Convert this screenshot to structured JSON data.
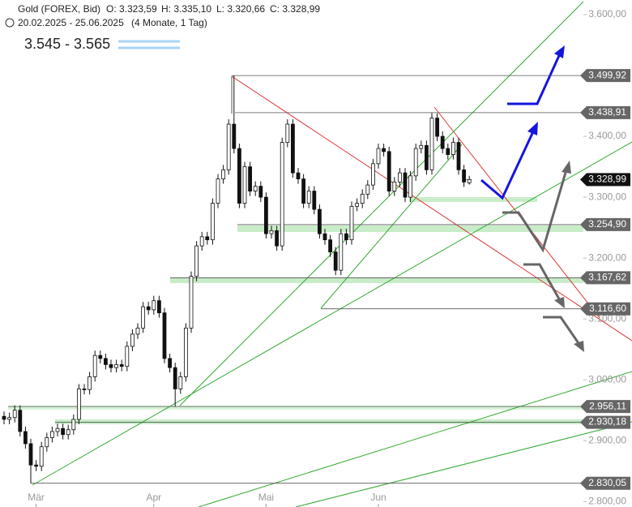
{
  "chart_data": {
    "type": "candlestick",
    "header": {
      "title": "Gold (FOREX, Bid)",
      "open": "O: 3.323,59",
      "high": "H: 3.335,10",
      "low": "L: 3.320,66",
      "close": "C: 3.328,99",
      "range": "20.02.2025 - 25.06.2025",
      "period": "(4 Monate, 1 Tag)"
    },
    "legend": {
      "label": "3.545 - 3.565",
      "color": "#a8d4f5"
    },
    "categories": [
      null,
      null,
      null,
      null,
      null,
      null,
      "Mär",
      null,
      null,
      null,
      null,
      null,
      null,
      null,
      null,
      null,
      null,
      null,
      null,
      null,
      null,
      null,
      null,
      null,
      null,
      null,
      null,
      null,
      "Apr",
      null,
      null,
      null,
      null,
      null,
      null,
      null,
      null,
      null,
      null,
      null,
      null,
      null,
      null,
      null,
      null,
      null,
      null,
      null,
      null,
      "Mai",
      null,
      null,
      null,
      null,
      null,
      null,
      null,
      null,
      null,
      null,
      null,
      null,
      null,
      null,
      null,
      null,
      null,
      null,
      null,
      null,
      "Jun",
      null,
      null,
      null,
      null,
      null,
      null,
      null,
      null,
      null,
      null,
      null,
      null,
      null,
      null,
      null,
      null,
      null
    ],
    "open": [
      2940,
      2935,
      2938,
      2950,
      2915,
      2895,
      2860,
      2858,
      2890,
      2905,
      2915,
      2920,
      2910,
      2918,
      2935,
      2985,
      2984,
      3005,
      3040,
      3035,
      3025,
      3020,
      3025,
      3022,
      3055,
      3075,
      3085,
      3120,
      3115,
      3130,
      3110,
      3035,
      3020,
      2985,
      3005,
      3085,
      3170,
      3220,
      3235,
      3230,
      3290,
      3330,
      3345,
      3420,
      3380,
      3290,
      3350,
      3310,
      3318,
      3300,
      3240,
      3245,
      3220,
      3390,
      3420,
      3340,
      3330,
      3290,
      3310,
      3280,
      3240,
      3230,
      3210,
      3180,
      3240,
      3230,
      3285,
      3290,
      3305,
      3320,
      3355,
      3380,
      3375,
      3310,
      3325,
      3340,
      3300,
      3335,
      3380,
      3385,
      3345,
      3430,
      3400,
      3380,
      3370,
      3390,
      3345,
      3323.59
    ],
    "high": [
      2948,
      2946,
      2958,
      2958,
      2923,
      2903,
      2868,
      2898,
      2913,
      2923,
      2928,
      2928,
      2926,
      2943,
      2993,
      2993,
      3013,
      3048,
      3048,
      3043,
      3033,
      3033,
      3033,
      3063,
      3083,
      3093,
      3128,
      3128,
      3138,
      3138,
      3118,
      3043,
      3028,
      3013,
      3093,
      3178,
      3228,
      3243,
      3243,
      3298,
      3338,
      3353,
      3428,
      3499.92,
      3388,
      3358,
      3358,
      3326,
      3326,
      3308,
      3253,
      3253,
      3398,
      3428,
      3428,
      3348,
      3338,
      3318,
      3318,
      3288,
      3248,
      3238,
      3218,
      3248,
      3248,
      3293,
      3298,
      3313,
      3328,
      3363,
      3388,
      3388,
      3383,
      3333,
      3348,
      3348,
      3343,
      3388,
      3393,
      3393,
      3438.91,
      3438,
      3408,
      3388,
      3398,
      3398,
      3353,
      3335.1
    ],
    "low": [
      2927,
      2927,
      2930,
      2907,
      2887,
      2830,
      2850,
      2850,
      2882,
      2897,
      2907,
      2902,
      2902,
      2910,
      2927,
      2976,
      2976,
      2997,
      3027,
      3017,
      3012,
      3012,
      3014,
      3014,
      3047,
      3067,
      3077,
      3107,
      3107,
      3102,
      3027,
      3012,
      2956,
      2977,
      2997,
      3077,
      3162,
      3212,
      3222,
      3222,
      3282,
      3322,
      3337,
      3372,
      3282,
      3282,
      3302,
      3302,
      3292,
      3232,
      3232,
      3212,
      3212,
      3382,
      3332,
      3322,
      3282,
      3282,
      3272,
      3232,
      3222,
      3202,
      3172,
      3172,
      3222,
      3222,
      3277,
      3282,
      3297,
      3312,
      3347,
      3367,
      3302,
      3302,
      3317,
      3292,
      3292,
      3327,
      3372,
      3337,
      3337,
      3392,
      3372,
      3362,
      3362,
      3337,
      3317,
      3320.66
    ],
    "close": [
      2935,
      2938,
      2950,
      2915,
      2895,
      2860,
      2858,
      2890,
      2905,
      2915,
      2920,
      2910,
      2918,
      2935,
      2985,
      2984,
      3005,
      3040,
      3035,
      3025,
      3020,
      3025,
      3022,
      3055,
      3075,
      3085,
      3120,
      3115,
      3130,
      3110,
      3035,
      3020,
      2985,
      3005,
      3085,
      3170,
      3220,
      3235,
      3230,
      3290,
      3330,
      3345,
      3420,
      3380,
      3290,
      3350,
      3310,
      3318,
      3300,
      3240,
      3245,
      3220,
      3390,
      3420,
      3340,
      3330,
      3290,
      3310,
      3280,
      3240,
      3230,
      3210,
      3180,
      3240,
      3230,
      3285,
      3290,
      3305,
      3320,
      3355,
      3380,
      3375,
      3310,
      3325,
      3340,
      3300,
      3335,
      3380,
      3385,
      3345,
      3430,
      3400,
      3380,
      3370,
      3390,
      3345,
      3325,
      3328.99
    ],
    "levels": [
      {
        "value": 3499.92,
        "label": "3.499,92"
      },
      {
        "value": 3438.91,
        "label": "3.438,91"
      },
      {
        "value": 3328.99,
        "label": "3.328,99"
      },
      {
        "value": 3254.9,
        "label": "3.254,90"
      },
      {
        "value": 3167.62,
        "label": "3.167,62"
      },
      {
        "value": 3116.6,
        "label": "3.116,60"
      },
      {
        "value": 2956.11,
        "label": "2.956,11"
      },
      {
        "value": 2930.18,
        "label": "2.930,18"
      },
      {
        "value": 2830.05,
        "label": "2.830,05"
      }
    ],
    "ylim": [
      2791,
      3624
    ],
    "yticks": [
      {
        "value": 2800,
        "label": "2.800,00"
      },
      {
        "value": 2900,
        "label": "2.900,00"
      },
      {
        "value": 3000,
        "label": "3.000,00"
      },
      {
        "value": 3100,
        "label": "3.100,00"
      },
      {
        "value": 3200,
        "label": "3.200,00"
      },
      {
        "value": 3300,
        "label": "3.300,00"
      },
      {
        "value": 3400,
        "label": "3.400,00"
      },
      {
        "value": 3500,
        "label": "3.500,00"
      },
      {
        "value": 3600,
        "label": "3.600,00"
      }
    ]
  }
}
